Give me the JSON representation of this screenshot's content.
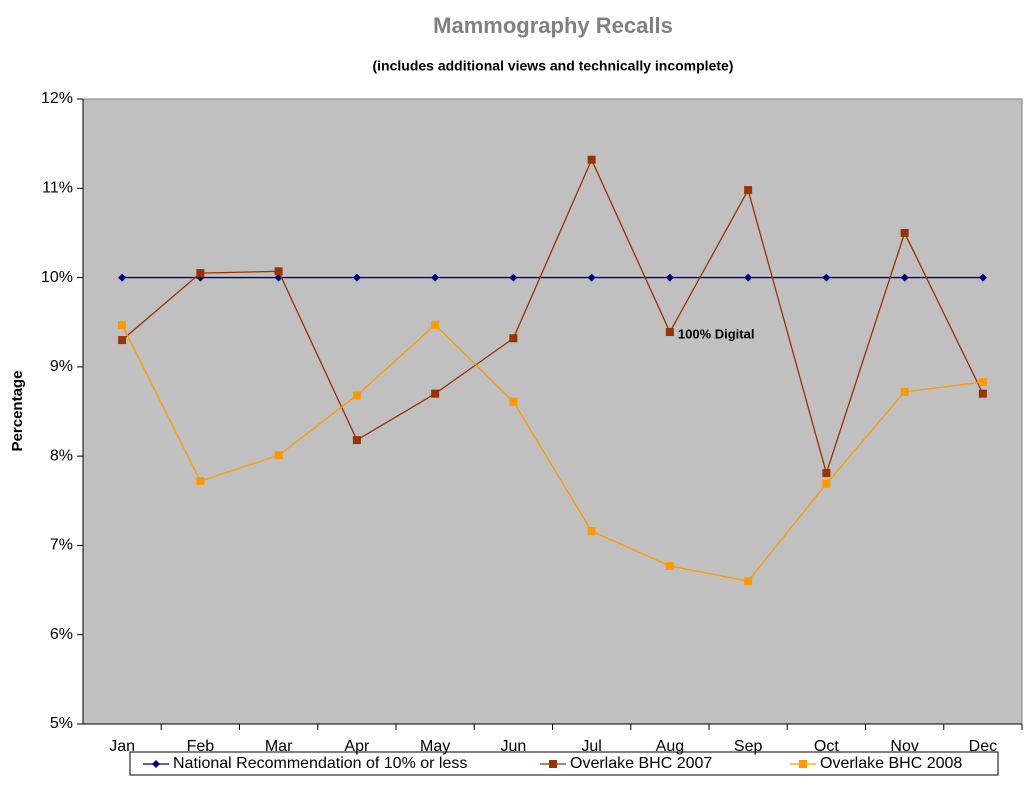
{
  "chart_data": {
    "type": "line",
    "title": "Mammography Recalls",
    "subtitle": "(includes additional views and technically incomplete)",
    "y_label": "Percentage",
    "categories": [
      "Jan",
      "Feb",
      "Mar",
      "Apr",
      "May",
      "Jun",
      "Jul",
      "Aug",
      "Sep",
      "Oct",
      "Nov",
      "Dec"
    ],
    "series": [
      {
        "name": "National Recommendation of 10% or less",
        "color": "#000080",
        "marker": "diamond",
        "values": [
          10,
          10,
          10,
          10,
          10,
          10,
          10,
          10,
          10,
          10,
          10,
          10
        ]
      },
      {
        "name": "Overlake BHC 2007",
        "color": "#993300",
        "marker": "square",
        "values": [
          9.3,
          10.05,
          10.07,
          8.18,
          8.7,
          9.32,
          11.32,
          9.39,
          10.98,
          7.81,
          10.5,
          8.7
        ]
      },
      {
        "name": "Overlake BHC 2008",
        "color": "#ff9900",
        "marker": "square",
        "values": [
          9.47,
          7.72,
          8.01,
          8.68,
          9.47,
          8.61,
          7.16,
          6.77,
          6.6,
          7.69,
          8.72,
          8.83
        ]
      }
    ],
    "annotations": [
      {
        "text": "100% Digital",
        "category": 7
      }
    ],
    "ylim": [
      5,
      12
    ],
    "yticks": [
      {
        "value": 5,
        "label": "5%"
      },
      {
        "value": 6,
        "label": "6%"
      },
      {
        "value": 7,
        "label": "7%"
      },
      {
        "value": 8,
        "label": "8%"
      },
      {
        "value": 9,
        "label": "9%"
      },
      {
        "value": 10,
        "label": "10%"
      },
      {
        "value": 11,
        "label": "11%"
      },
      {
        "value": 12,
        "label": "12%"
      }
    ],
    "grid": false,
    "legend": "bottom"
  }
}
